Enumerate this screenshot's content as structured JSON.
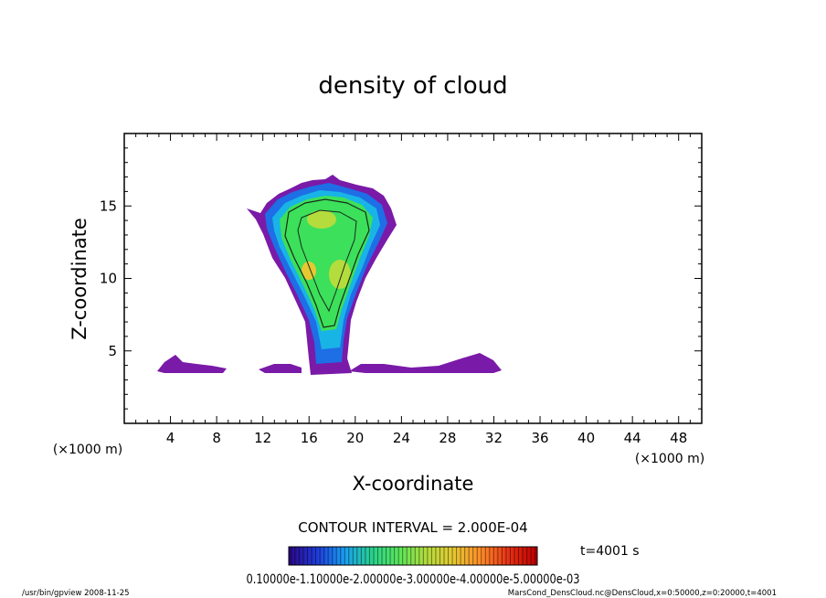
{
  "chart_data": {
    "type": "heatmap",
    "title": "density of cloud",
    "xlabel": "X-coordinate",
    "ylabel": "Z-coordinate",
    "xunit_left": "(×1000 m)",
    "xunit_right": "(×1000 m)",
    "xlim": [
      0,
      50
    ],
    "ylim": [
      0,
      20
    ],
    "xticks": [
      4,
      8,
      12,
      16,
      20,
      24,
      28,
      32,
      36,
      40,
      44,
      48
    ],
    "yticks": [
      5,
      10,
      15
    ],
    "contour_interval_text": "CONTOUR INTERVAL = 2.000E-04",
    "time_label": "t=4001 s",
    "colorbar_labels_text": "0.10000e-1.10000e-2.00000e-3.00000e-4.00000e-5.00000e-03",
    "colorbar_range": [
      0,
      0.0006
    ],
    "colors": [
      "#2a0a8c",
      "#1e3cdc",
      "#19a0f0",
      "#28d28c",
      "#5ae65a",
      "#b4dc3c",
      "#e6c832",
      "#ff8c28",
      "#e63214",
      "#c00000"
    ],
    "cloud_fill_color": "#7a1aa8",
    "cloud_core_color": "#3ce05a"
  },
  "footer": {
    "left": "/usr/bin/gpview   2008-11-25",
    "right": "MarsCond_DensCloud.nc@DensCloud,x=0:50000,z=0:20000,t=4001"
  }
}
